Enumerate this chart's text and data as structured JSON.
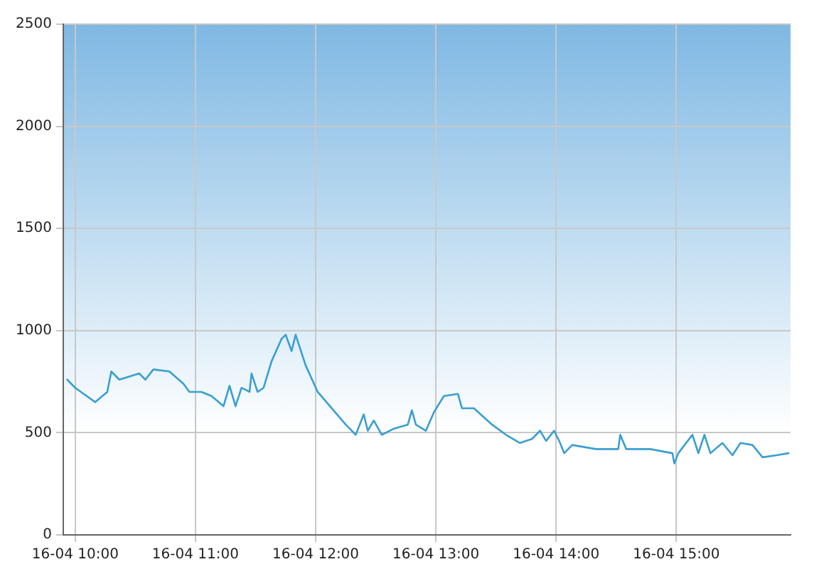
{
  "chart_data": {
    "type": "line",
    "x": [
      "--04-16T09:56",
      "--04-16T10:00",
      "--04-16T10:10",
      "--04-16T10:16",
      "--04-16T10:18",
      "--04-16T10:22",
      "--04-16T10:32",
      "--04-16T10:35",
      "--04-16T10:39",
      "--04-16T10:47",
      "--04-16T10:54",
      "--04-16T10:57",
      "--04-16T11:03",
      "--04-16T11:08",
      "--04-16T11:14",
      "--04-16T11:17",
      "--04-16T11:20",
      "--04-16T11:23",
      "--04-16T11:27",
      "--04-16T11:28",
      "--04-16T11:31",
      "--04-16T11:34",
      "--04-16T11:38",
      "--04-16T11:43",
      "--04-16T11:45",
      "--04-16T11:48",
      "--04-16T11:50",
      "--04-16T11:55",
      "--04-16T12:01",
      "--04-16T12:08",
      "--04-16T12:15",
      "--04-16T12:20",
      "--04-16T12:24",
      "--04-16T12:26",
      "--04-16T12:29",
      "--04-16T12:33",
      "--04-16T12:39",
      "--04-16T12:46",
      "--04-16T12:48",
      "--04-16T12:50",
      "--04-16T12:55",
      "--04-16T12:59",
      "--04-16T13:04",
      "--04-16T13:11",
      "--04-16T13:13",
      "--04-16T13:19",
      "--04-16T13:28",
      "--04-16T13:35",
      "--04-16T13:42",
      "--04-16T13:48",
      "--04-16T13:52",
      "--04-16T13:55",
      "--04-16T13:59",
      "--04-16T14:02",
      "--04-16T14:04",
      "--04-16T14:08",
      "--04-16T14:20",
      "--04-16T14:31",
      "--04-16T14:32",
      "--04-16T14:35",
      "--04-16T14:47",
      "--04-16T14:58",
      "--04-16T14:59",
      "--04-16T15:01",
      "--04-16T15:08",
      "--04-16T15:11",
      "--04-16T15:14",
      "--04-16T15:17",
      "--04-16T15:23",
      "--04-16T15:28",
      "--04-16T15:32",
      "--04-16T15:38",
      "--04-16T15:43",
      "--04-16T15:50",
      "--04-16T15:56"
    ],
    "series": [
      {
        "color": "#3a9fd0",
        "values": [
          760,
          720,
          650,
          700,
          800,
          760,
          790,
          760,
          810,
          800,
          740,
          700,
          700,
          680,
          630,
          730,
          630,
          720,
          700,
          790,
          700,
          720,
          850,
          960,
          980,
          900,
          980,
          830,
          700,
          620,
          540,
          490,
          590,
          510,
          560,
          490,
          520,
          540,
          610,
          540,
          510,
          600,
          680,
          690,
          620,
          620,
          540,
          490,
          450,
          470,
          510,
          460,
          510,
          450,
          400,
          440,
          420,
          420,
          490,
          420,
          420,
          400,
          350,
          400,
          490,
          400,
          490,
          400,
          450,
          390,
          450,
          440,
          380,
          390,
          400
        ]
      }
    ],
    "xlim": [
      "--04-16T09:54",
      "--04-16T15:57"
    ],
    "xticks": [
      {
        "value": "--04-16T10:00",
        "label": "16-04 10:00"
      },
      {
        "value": "--04-16T11:00",
        "label": "16-04 11:00"
      },
      {
        "value": "--04-16T12:00",
        "label": "16-04 12:00"
      },
      {
        "value": "--04-16T13:00",
        "label": "16-04 13:00"
      },
      {
        "value": "--04-16T14:00",
        "label": "16-04 14:00"
      },
      {
        "value": "--04-16T15:00",
        "label": "16-04 15:00"
      }
    ],
    "ylim": [
      0,
      2500
    ],
    "yticks": [
      0,
      500,
      1000,
      1500,
      2000,
      2500
    ],
    "grid": true,
    "marker": "none",
    "line_style": "solid"
  }
}
